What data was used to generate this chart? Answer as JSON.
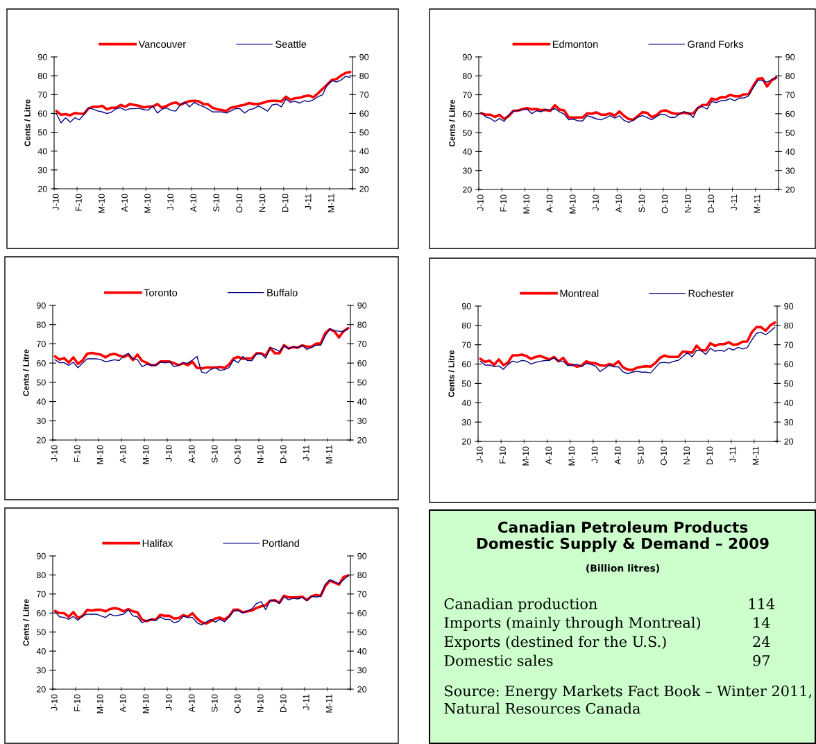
{
  "chart_data": [
    {
      "type": "line",
      "ylabel": "Cents / Litre",
      "legend": "top",
      "categories": [
        "J-10",
        null,
        null,
        null,
        null,
        "F-10",
        null,
        null,
        null,
        null,
        "M-10",
        null,
        null,
        null,
        null,
        "A-10",
        null,
        null,
        null,
        null,
        "M-10",
        null,
        null,
        null,
        null,
        "J-10",
        null,
        null,
        null,
        null,
        "A-10",
        null,
        null,
        null,
        null,
        "S-10",
        null,
        null,
        null,
        null,
        "O-10",
        null,
        null,
        null,
        null,
        "N-10",
        null,
        null,
        null,
        null,
        "D-10",
        null,
        null,
        null,
        null,
        "J-11",
        null,
        null,
        null,
        null,
        "M-11",
        null,
        null,
        null,
        null
      ],
      "ylim": [
        20,
        90
      ],
      "yticks": [
        20,
        30,
        40,
        50,
        60,
        70,
        80,
        90
      ],
      "y2lim": [
        20,
        90
      ],
      "y2ticks": [
        20,
        30,
        40,
        50,
        60,
        70,
        80,
        90
      ],
      "series": [
        {
          "name": "Vancouver",
          "color": "#ff0000",
          "values": [
            61.3,
            59.3,
            59.6,
            59,
            60.2,
            59.9,
            59.8,
            62.7,
            63.5,
            63.5,
            64,
            62.2,
            63,
            63,
            64.5,
            63.5,
            65,
            64.5,
            64,
            63.2,
            63.6,
            63.6,
            65,
            63,
            64,
            65.2,
            65.8,
            64.5,
            65.7,
            66.5,
            66.7,
            66.4,
            65,
            64.9,
            63,
            62.2,
            61.8,
            61.3,
            63,
            63.5,
            64.1,
            64.6,
            65.5,
            65,
            65,
            65.6,
            66.4,
            66.7,
            66.7,
            66.3,
            68.9,
            67.2,
            68.1,
            68.3,
            69.1,
            69.5,
            68.6,
            70.7,
            73,
            75.3,
            77.7,
            78.2,
            80.1,
            81.5,
            82
          ]
        },
        {
          "name": "Seattle",
          "color": "#000080",
          "values": [
            59.8,
            55,
            57.7,
            55.4,
            57.7,
            56.6,
            59.4,
            63,
            62.2,
            61.3,
            60.8,
            59.9,
            60.7,
            62.5,
            63,
            61.7,
            62.5,
            62.5,
            62.8,
            62,
            61.7,
            64,
            60.2,
            62.2,
            63,
            61.6,
            61.2,
            64.6,
            65.9,
            63.5,
            65.8,
            64.6,
            63.6,
            62.4,
            60.8,
            60.8,
            60.8,
            60.2,
            61.3,
            62.5,
            62.5,
            60.2,
            62,
            62.5,
            64,
            62.7,
            61.2,
            64.5,
            65,
            63.5,
            67.6,
            65.9,
            66.4,
            65.5,
            66.7,
            66.3,
            67.3,
            68.9,
            70,
            75.2,
            77.4,
            76.7,
            77.7,
            79.7,
            79.1
          ]
        }
      ]
    },
    {
      "type": "line",
      "ylabel": "Cents / Litre",
      "legend": "top",
      "categories": [
        "J-10",
        null,
        null,
        null,
        null,
        "F-10",
        null,
        null,
        null,
        null,
        "M-10",
        null,
        null,
        null,
        null,
        "A-10",
        null,
        null,
        null,
        null,
        "M-10",
        null,
        null,
        null,
        null,
        "J-10",
        null,
        null,
        null,
        null,
        "A-10",
        null,
        null,
        null,
        null,
        "S-10",
        null,
        null,
        null,
        null,
        "O-10",
        null,
        null,
        null,
        null,
        "N-10",
        null,
        null,
        null,
        null,
        "D-10",
        null,
        null,
        null,
        null,
        "J-11",
        null,
        null,
        null,
        null,
        "M-11",
        null,
        null,
        null,
        null
      ],
      "ylim": [
        20,
        90
      ],
      "yticks": [
        20,
        30,
        40,
        50,
        60,
        70,
        80,
        90
      ],
      "y2lim": [
        20,
        90
      ],
      "y2ticks": [
        20,
        30,
        40,
        50,
        60,
        70,
        80,
        90
      ],
      "series": [
        {
          "name": "Edmonton",
          "color": "#ff0000",
          "values": [
            60.2,
            59.5,
            59.5,
            58.3,
            59.4,
            57.3,
            58.7,
            61.6,
            61.6,
            62.5,
            63,
            62.3,
            62.5,
            61.9,
            62,
            61.5,
            64.5,
            62.2,
            61.8,
            58,
            58,
            58,
            58,
            60.2,
            60,
            60.7,
            59.5,
            59.5,
            60.2,
            59,
            61.2,
            58.9,
            57.2,
            56.8,
            58.8,
            60.8,
            60.5,
            58.2,
            59.2,
            61.3,
            61.8,
            60.7,
            60,
            60,
            60.6,
            60,
            60.2,
            63,
            64.6,
            64.6,
            68,
            67.4,
            68.7,
            68.7,
            70,
            69.2,
            69.2,
            70.2,
            70.3,
            74.6,
            78.4,
            78.7,
            74.4,
            77.6,
            79
          ]
        },
        {
          "name": "Grand Forks",
          "color": "#000080",
          "values": [
            60.7,
            58.3,
            57.5,
            55.9,
            57.5,
            55.9,
            59.5,
            61.3,
            61.8,
            62,
            62.4,
            60,
            61.6,
            61,
            62.4,
            61.8,
            62.7,
            61,
            59.8,
            56.8,
            57.2,
            56.2,
            56.2,
            59,
            58.2,
            57.3,
            56.8,
            57.8,
            59,
            57.7,
            58.9,
            56.5,
            55.4,
            56.5,
            58.2,
            59,
            58,
            56.8,
            58.4,
            59.8,
            59.4,
            58,
            58,
            59.9,
            61.1,
            60.5,
            58,
            63.3,
            63.8,
            62.5,
            66.4,
            65.9,
            66.9,
            67,
            68,
            66.9,
            68.3,
            68.3,
            69.3,
            73.7,
            77.5,
            77.5,
            76.7,
            78,
            79.4
          ]
        }
      ]
    },
    {
      "type": "line",
      "ylabel": "Cents / Litre",
      "legend": "top",
      "categories": [
        "J-10",
        null,
        null,
        null,
        null,
        "F-10",
        null,
        null,
        null,
        null,
        "M-10",
        null,
        null,
        null,
        null,
        "A-10",
        null,
        null,
        null,
        null,
        "M-10",
        null,
        null,
        null,
        null,
        "J-10",
        null,
        null,
        null,
        null,
        "A-10",
        null,
        null,
        null,
        null,
        "S-10",
        null,
        null,
        null,
        null,
        "O-10",
        null,
        null,
        null,
        null,
        "N-10",
        null,
        null,
        null,
        null,
        "D-10",
        null,
        null,
        null,
        null,
        "J-11",
        null,
        null,
        null,
        null,
        "M-11",
        null,
        null,
        null,
        null
      ],
      "ylim": [
        20,
        90
      ],
      "yticks": [
        20,
        30,
        40,
        50,
        60,
        70,
        80,
        90
      ],
      "y2lim": [
        20,
        90
      ],
      "y2ticks": [
        20,
        30,
        40,
        50,
        60,
        70,
        80,
        90
      ],
      "series": [
        {
          "name": "Toronto",
          "color": "#ff0000",
          "values": [
            63.5,
            61.8,
            62.6,
            60.2,
            63,
            59.6,
            61.3,
            64.8,
            65.3,
            64.8,
            64.4,
            63,
            64.4,
            64.8,
            63.9,
            63.1,
            64.4,
            61.6,
            64.4,
            61.2,
            60.2,
            58.9,
            58.9,
            60.8,
            60.8,
            60.8,
            59.9,
            58.9,
            59.9,
            58.9,
            60.7,
            57.5,
            57.2,
            57.7,
            57.7,
            57.7,
            58,
            57.5,
            59.3,
            62.4,
            63.2,
            62.2,
            62.4,
            62.5,
            65.1,
            65.1,
            63.9,
            67.9,
            65.1,
            65.1,
            69.3,
            67.6,
            68.3,
            68,
            69.2,
            68.5,
            68.5,
            70.1,
            70.1,
            75.6,
            77.6,
            76.5,
            73.3,
            76.6,
            78.2
          ]
        },
        {
          "name": "Buffalo",
          "color": "#000080",
          "values": [
            61.7,
            60.2,
            60.2,
            58.8,
            60.4,
            57.6,
            59.9,
            62.2,
            62.2,
            62.2,
            61.8,
            60.7,
            61.2,
            61.7,
            61.3,
            63.8,
            65.1,
            62.3,
            61.8,
            58.1,
            59.3,
            58.9,
            58.9,
            60.5,
            60.1,
            60.7,
            58.1,
            58.9,
            60.2,
            59.9,
            61.6,
            63.5,
            55.3,
            54.7,
            56.7,
            57.6,
            56.2,
            56.6,
            57.7,
            61.6,
            60.2,
            63.5,
            61.3,
            61.3,
            64.8,
            64.8,
            62.6,
            68.1,
            67.3,
            66,
            69,
            67.4,
            68.5,
            68,
            69.3,
            67.1,
            68.1,
            69.3,
            69.3,
            74.2,
            77.9,
            76.8,
            76.6,
            76.4,
            77.9
          ]
        }
      ]
    },
    {
      "type": "line",
      "ylabel": "Cents / Litre",
      "legend": "top",
      "categories": [
        "J-10",
        null,
        null,
        null,
        null,
        "F-10",
        null,
        null,
        null,
        null,
        "M-10",
        null,
        null,
        null,
        null,
        "A-10",
        null,
        null,
        null,
        null,
        "M-10",
        null,
        null,
        null,
        null,
        "J-10",
        null,
        null,
        null,
        null,
        "A-10",
        null,
        null,
        null,
        null,
        "S-10",
        null,
        null,
        null,
        null,
        "O-10",
        null,
        null,
        null,
        null,
        "N-10",
        null,
        null,
        null,
        null,
        "D-10",
        null,
        null,
        null,
        null,
        "J-11",
        null,
        null,
        null,
        null,
        "M-11",
        null,
        null,
        null,
        null
      ],
      "ylim": [
        20,
        90
      ],
      "yticks": [
        20,
        30,
        40,
        50,
        60,
        70,
        80,
        90
      ],
      "y2lim": [
        20,
        90
      ],
      "y2ticks": [
        20,
        30,
        40,
        50,
        60,
        70,
        80,
        90
      ],
      "series": [
        {
          "name": "Montreal",
          "color": "#ff0000",
          "values": [
            62.7,
            61.1,
            61.8,
            59.6,
            62.4,
            59.4,
            60.8,
            64.5,
            64.5,
            64.9,
            64.2,
            62.7,
            63.7,
            64.2,
            63.3,
            62.4,
            63.7,
            61.4,
            63.2,
            60,
            59.6,
            58.7,
            59.2,
            61.4,
            60.6,
            60.4,
            59.4,
            59.1,
            60,
            59.5,
            61.4,
            58.3,
            57.2,
            56.9,
            58.1,
            58.6,
            58.9,
            58.7,
            60.5,
            63.1,
            64.4,
            63.7,
            63.7,
            63.7,
            66.5,
            66.2,
            65.9,
            69.5,
            67.1,
            67.1,
            70.8,
            69.4,
            70.3,
            70.3,
            71.3,
            69.9,
            70.3,
            71.6,
            71.7,
            76.5,
            79.1,
            79.1,
            77.2,
            80,
            81.5
          ]
        },
        {
          "name": "Rochester",
          "color": "#000080",
          "values": [
            61.4,
            59.5,
            59.5,
            58.7,
            59.1,
            57.3,
            59.8,
            61.5,
            60.9,
            61.9,
            61.5,
            60,
            60.9,
            61.4,
            61.8,
            61.9,
            63.2,
            61.5,
            61.5,
            59.2,
            59.4,
            59.9,
            58.7,
            60.4,
            59.8,
            59.1,
            56.1,
            57.7,
            59.4,
            58.6,
            58.6,
            56,
            55,
            55.8,
            56.3,
            55.8,
            55.8,
            55.4,
            58,
            60.6,
            60.9,
            60.5,
            61.4,
            61.9,
            63.8,
            65.9,
            63.7,
            67.2,
            67,
            65,
            68.2,
            66.6,
            67.1,
            66.6,
            68.2,
            67.2,
            68.7,
            67.8,
            68.5,
            72.5,
            75.9,
            76.4,
            75.1,
            77,
            79
          ]
        }
      ]
    },
    {
      "type": "line",
      "ylabel": "Cents / Litre",
      "legend": "top",
      "categories": [
        "J-10",
        null,
        null,
        null,
        null,
        "F-10",
        null,
        null,
        null,
        null,
        "M-10",
        null,
        null,
        null,
        null,
        "A-10",
        null,
        null,
        null,
        null,
        "M-10",
        null,
        null,
        null,
        null,
        "J-10",
        null,
        null,
        null,
        null,
        "A-10",
        null,
        null,
        null,
        null,
        "S-10",
        null,
        null,
        null,
        null,
        "O-10",
        null,
        null,
        null,
        null,
        "N-10",
        null,
        null,
        null,
        null,
        "D-10",
        null,
        null,
        null,
        null,
        "J-11",
        null,
        null,
        null,
        null,
        "M-11",
        null,
        null,
        null,
        null
      ],
      "ylim": [
        20,
        90
      ],
      "yticks": [
        20,
        30,
        40,
        50,
        60,
        70,
        80,
        90
      ],
      "y2lim": [
        20,
        90
      ],
      "y2ticks": [
        20,
        30,
        40,
        50,
        60,
        70,
        80,
        90
      ],
      "series": [
        {
          "name": "Halifax",
          "color": "#ff0000",
          "values": [
            61.1,
            60,
            59.9,
            58,
            60.5,
            57.4,
            58.4,
            61.6,
            61.3,
            61.7,
            61.7,
            60.9,
            62.1,
            62.6,
            62.1,
            60.9,
            62.1,
            60.9,
            60.4,
            56.5,
            55.7,
            56.6,
            56.5,
            59.1,
            58.5,
            58.5,
            57.1,
            57.4,
            58.9,
            58,
            59.9,
            57.1,
            55.1,
            54.5,
            55.7,
            57.1,
            57.6,
            56.6,
            58.3,
            61.7,
            61.7,
            60.4,
            60.9,
            61.3,
            62.7,
            63.5,
            64.1,
            66.5,
            66.7,
            65.4,
            69.1,
            68.2,
            68.2,
            68.3,
            68.6,
            66.8,
            68.8,
            69.5,
            69,
            74.1,
            76.9,
            76,
            74.9,
            78.9,
            79.7
          ]
        },
        {
          "name": "Portland",
          "color": "#000080",
          "values": [
            60.7,
            58,
            57.7,
            56.7,
            58.2,
            56.2,
            58.5,
            59.4,
            59.4,
            59.4,
            58.5,
            57.7,
            59.4,
            58.5,
            58.9,
            59.4,
            61.8,
            58.5,
            58,
            54.9,
            56.1,
            56.7,
            56.1,
            58,
            56.7,
            56.7,
            54.9,
            55.6,
            58.3,
            57.7,
            57.7,
            54.9,
            53.8,
            55.2,
            56.6,
            55.2,
            56.7,
            55.4,
            57.9,
            61.1,
            61.3,
            60,
            61.1,
            62.2,
            65,
            66,
            61.8,
            66.6,
            66.6,
            65,
            68.6,
            66.9,
            67.8,
            67.4,
            68.2,
            66.5,
            68.8,
            68.4,
            68.8,
            75.1,
            77.5,
            76.6,
            75.3,
            77.4,
            79.7
          ]
        }
      ]
    },
    {
      "type": "other",
      "title": "Canadian Petroleum Products\nDomestic Supply & Demand – 2009",
      "subtitle": "(Billion litres)",
      "categories": [
        "Canadian production",
        "Imports (mainly through Montreal)",
        "Exports (destined for the U.S.)",
        "Domestic sales"
      ],
      "values": [
        114,
        14,
        24,
        97
      ],
      "data_labels": true,
      "annotations": [
        "Source: Energy Markets Fact Book – Winter 2011, Natural Resources Canada"
      ]
    }
  ]
}
